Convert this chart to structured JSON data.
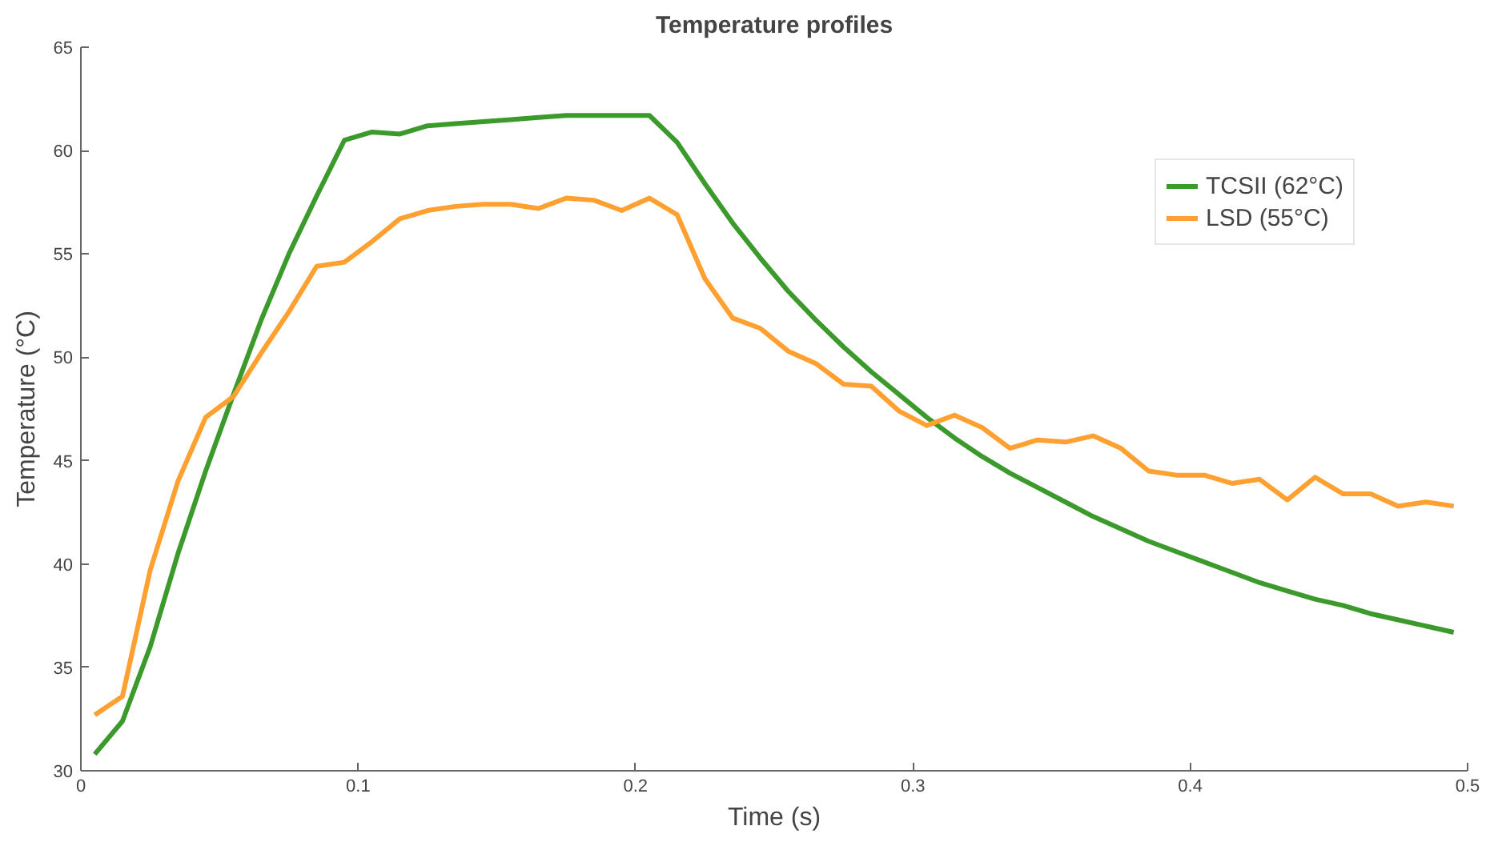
{
  "chart_data": {
    "type": "line",
    "title": "Temperature profiles",
    "xlabel": "Time (s)",
    "ylabel": "Temperature (°C)",
    "x": [
      0.005,
      0.015,
      0.025,
      0.035,
      0.045,
      0.055,
      0.065,
      0.075,
      0.085,
      0.095,
      0.105,
      0.115,
      0.125,
      0.135,
      0.145,
      0.155,
      0.165,
      0.175,
      0.185,
      0.195,
      0.205,
      0.215,
      0.225,
      0.235,
      0.245,
      0.255,
      0.265,
      0.275,
      0.285,
      0.295,
      0.305,
      0.315,
      0.325,
      0.335,
      0.345,
      0.355,
      0.365,
      0.375,
      0.385,
      0.395,
      0.405,
      0.415,
      0.425,
      0.435,
      0.445,
      0.455,
      0.465,
      0.475,
      0.485,
      0.495
    ],
    "series": [
      {
        "name": "TCSII (62°C)",
        "color": "#3c9a2c",
        "values": [
          30.8,
          32.4,
          36.0,
          40.5,
          44.5,
          48.2,
          51.8,
          55.0,
          57.8,
          60.5,
          60.9,
          60.8,
          61.2,
          61.3,
          61.4,
          61.5,
          61.6,
          61.7,
          61.7,
          61.7,
          61.7,
          60.4,
          58.4,
          56.5,
          54.8,
          53.2,
          51.8,
          50.5,
          49.3,
          48.2,
          47.1,
          46.1,
          45.2,
          44.4,
          43.7,
          43.0,
          42.3,
          41.7,
          41.1,
          40.6,
          40.1,
          39.6,
          39.1,
          38.7,
          38.3,
          38.0,
          37.6,
          37.3,
          37.0,
          36.7
        ]
      },
      {
        "name": "LSD (55°C)",
        "color": "#ffa030",
        "values": [
          32.7,
          33.6,
          39.7,
          44.0,
          47.1,
          48.1,
          50.2,
          52.2,
          54.4,
          54.6,
          55.6,
          56.7,
          57.1,
          57.3,
          57.4,
          57.4,
          57.2,
          57.7,
          57.6,
          57.1,
          57.7,
          56.9,
          53.8,
          51.9,
          51.4,
          50.3,
          49.7,
          48.7,
          48.6,
          47.4,
          46.7,
          47.2,
          46.6,
          45.6,
          46.0,
          45.9,
          46.2,
          45.6,
          44.5,
          44.3,
          44.3,
          43.9,
          44.1,
          43.1,
          44.2,
          43.4,
          43.4,
          42.8,
          43.0,
          42.8
        ]
      }
    ],
    "xlim": [
      0,
      0.5
    ],
    "ylim": [
      30,
      65
    ],
    "xticks": [
      0,
      0.1,
      0.2,
      0.3,
      0.4,
      0.5
    ],
    "yticks": [
      30,
      35,
      40,
      45,
      50,
      55,
      60,
      65
    ],
    "legend": "top right",
    "grid": false
  }
}
